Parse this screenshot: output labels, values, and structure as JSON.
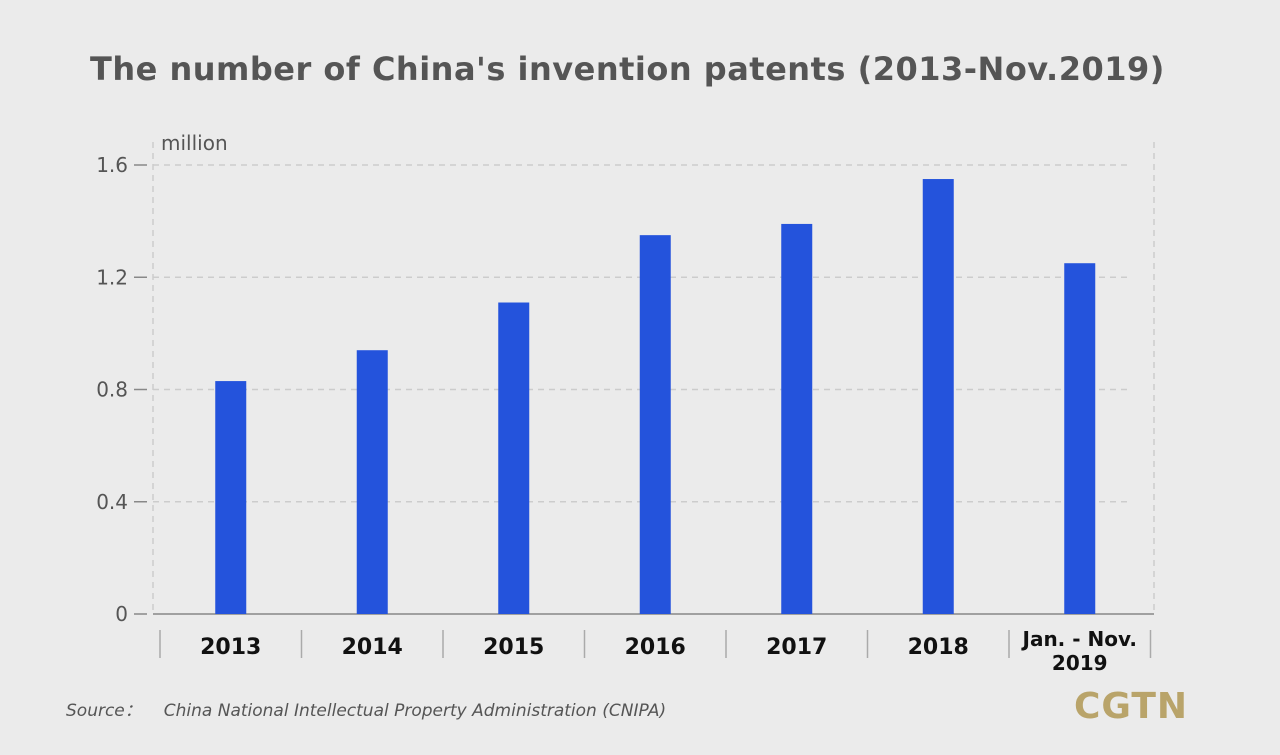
{
  "title": "The number of China's invention patents (2013-Nov.2019)",
  "source": {
    "label": "Source：",
    "text": "China National Intellectual Property Administration (CNIPA)"
  },
  "logo": "CGTN",
  "colors": {
    "bar": "#2453dc",
    "background": "#ebebeb",
    "grid": "#cccccc",
    "text": "#555555",
    "logo": "#b9a46a"
  },
  "chart_data": {
    "type": "bar",
    "title": "The number of China's invention patents (2013-Nov.2019)",
    "unit": "million",
    "xlabel": "",
    "ylabel": "",
    "categories": [
      [
        "2013"
      ],
      [
        "2014"
      ],
      [
        "2015"
      ],
      [
        "2016"
      ],
      [
        "2017"
      ],
      [
        "2018"
      ],
      [
        "Jan. - Nov.",
        "2019"
      ]
    ],
    "values": [
      0.83,
      0.94,
      1.11,
      1.35,
      1.39,
      1.55,
      1.25
    ],
    "yticks": [
      "0",
      "0.4",
      "0.8",
      "1.2",
      "1.6"
    ],
    "ylim": [
      0,
      1.6
    ],
    "grid": true,
    "grid_style": "dashed",
    "legend": "none"
  }
}
